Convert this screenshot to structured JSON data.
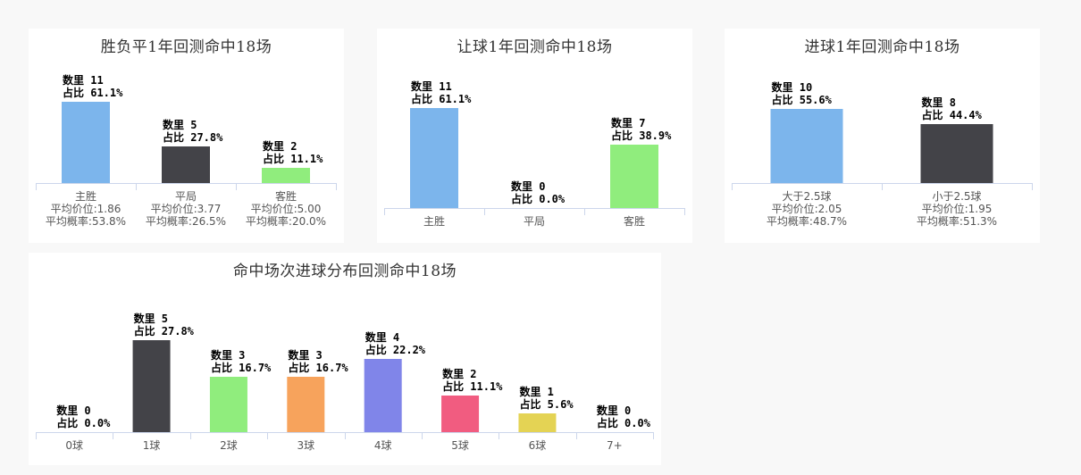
{
  "labels": {
    "count_prefix": "数里",
    "ratio_prefix": "占比"
  },
  "chart_data": [
    {
      "type": "bar",
      "title": "胜负平1年回测命中18场",
      "categories": [
        "主胜",
        "平局",
        "客胜"
      ],
      "values": [
        11,
        5,
        2
      ],
      "percentages": [
        "61.1%",
        "27.8%",
        "11.1%"
      ],
      "sub_labels": [
        [
          "平均价位:1.86",
          "平均概率:53.8%"
        ],
        [
          "平均价位:3.77",
          "平均概率:26.5%"
        ],
        [
          "平均价位:5.00",
          "平均概率:20.0%"
        ]
      ],
      "colors": [
        "#7cb5ec",
        "#434348",
        "#90ed7d"
      ],
      "ylim": [
        0,
        11
      ]
    },
    {
      "type": "bar",
      "title": "让球1年回测命中18场",
      "categories": [
        "主胜",
        "平局",
        "客胜"
      ],
      "values": [
        11,
        0,
        7
      ],
      "percentages": [
        "61.1%",
        "0.0%",
        "38.9%"
      ],
      "sub_labels": [],
      "colors": [
        "#7cb5ec",
        "#434348",
        "#90ed7d"
      ],
      "ylim": [
        0,
        11
      ]
    },
    {
      "type": "bar",
      "title": "进球1年回测命中18场",
      "categories": [
        "大于2.5球",
        "小于2.5球"
      ],
      "values": [
        10,
        8
      ],
      "percentages": [
        "55.6%",
        "44.4%"
      ],
      "sub_labels": [
        [
          "平均价位:2.05",
          "平均概率:48.7%"
        ],
        [
          "平均价位:1.95",
          "平均概率:51.3%"
        ]
      ],
      "colors": [
        "#7cb5ec",
        "#434348"
      ],
      "ylim": [
        0,
        10
      ]
    },
    {
      "type": "bar",
      "title": "命中场次进球分布回测命中18场",
      "categories": [
        "0球",
        "1球",
        "2球",
        "3球",
        "4球",
        "5球",
        "6球",
        "7+"
      ],
      "values": [
        0,
        5,
        3,
        3,
        4,
        2,
        1,
        0
      ],
      "percentages": [
        "0.0%",
        "27.8%",
        "16.7%",
        "16.7%",
        "22.2%",
        "11.1%",
        "5.6%",
        "0.0%"
      ],
      "sub_labels": [],
      "colors": [
        "#7cb5ec",
        "#434348",
        "#90ed7d",
        "#f7a35c",
        "#8085e9",
        "#f15c80",
        "#e4d354",
        "#2b908f"
      ],
      "ylim": [
        0,
        5
      ]
    }
  ]
}
